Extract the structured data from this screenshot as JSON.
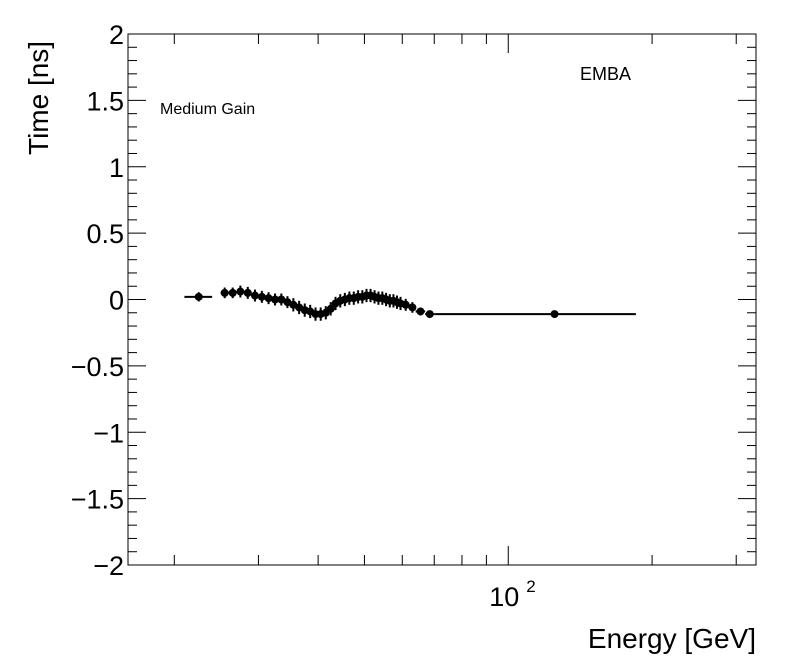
{
  "chart_data": {
    "type": "scatter",
    "title": "",
    "xlabel": "Energy [GeV]",
    "ylabel": "Time [ns]",
    "xscale": "log",
    "xlim": [
      16,
      330
    ],
    "ylim": [
      -2,
      2
    ],
    "grid": false,
    "annotations": [
      "Medium Gain",
      "EMBA"
    ],
    "y_ticks": [
      {
        "value": 2,
        "label": "2"
      },
      {
        "value": 1.5,
        "label": "1.5"
      },
      {
        "value": 1,
        "label": "1"
      },
      {
        "value": 0.5,
        "label": "0.5"
      },
      {
        "value": 0,
        "label": "0"
      },
      {
        "value": -0.5,
        "label": "−0.5"
      },
      {
        "value": -1,
        "label": "−1"
      },
      {
        "value": -1.5,
        "label": "−1.5"
      },
      {
        "value": -2,
        "label": "−2"
      }
    ],
    "x_major_ticks": [
      {
        "value": 100,
        "label_base": "10",
        "label_exp": "2"
      }
    ],
    "series": [
      {
        "name": "EMBA",
        "points": [
          {
            "x": 22.5,
            "y": 0.02,
            "xlo": 21.0,
            "xhi": 24.0,
            "yerr": 0.035
          },
          {
            "x": 25.5,
            "y": 0.05,
            "xlo": 25.0,
            "xhi": 26.0,
            "yerr": 0.04
          },
          {
            "x": 26.5,
            "y": 0.05,
            "xlo": 26.0,
            "xhi": 27.0,
            "yerr": 0.04
          },
          {
            "x": 27.5,
            "y": 0.06,
            "xlo": 27.0,
            "xhi": 28.0,
            "yerr": 0.045
          },
          {
            "x": 28.5,
            "y": 0.05,
            "xlo": 28.0,
            "xhi": 29.0,
            "yerr": 0.045
          },
          {
            "x": 29.5,
            "y": 0.03,
            "xlo": 29.0,
            "xhi": 30.0,
            "yerr": 0.045
          },
          {
            "x": 30.5,
            "y": 0.02,
            "xlo": 30.0,
            "xhi": 31.0,
            "yerr": 0.045
          },
          {
            "x": 31.5,
            "y": 0.01,
            "xlo": 31.0,
            "xhi": 32.0,
            "yerr": 0.045
          },
          {
            "x": 32.5,
            "y": 0.0,
            "xlo": 32.0,
            "xhi": 33.0,
            "yerr": 0.045
          },
          {
            "x": 33.5,
            "y": 0.0,
            "xlo": 33.0,
            "xhi": 34.0,
            "yerr": 0.045
          },
          {
            "x": 34.5,
            "y": -0.02,
            "xlo": 34.0,
            "xhi": 35.0,
            "yerr": 0.045
          },
          {
            "x": 35.5,
            "y": -0.04,
            "xlo": 35.0,
            "xhi": 36.0,
            "yerr": 0.05
          },
          {
            "x": 36.5,
            "y": -0.06,
            "xlo": 36.0,
            "xhi": 37.0,
            "yerr": 0.05
          },
          {
            "x": 37.5,
            "y": -0.08,
            "xlo": 37.0,
            "xhi": 38.0,
            "yerr": 0.05
          },
          {
            "x": 38.5,
            "y": -0.09,
            "xlo": 38.0,
            "xhi": 39.0,
            "yerr": 0.05
          },
          {
            "x": 39.5,
            "y": -0.11,
            "xlo": 39.0,
            "xhi": 40.0,
            "yerr": 0.05
          },
          {
            "x": 40.5,
            "y": -0.11,
            "xlo": 40.0,
            "xhi": 41.0,
            "yerr": 0.05
          },
          {
            "x": 41.5,
            "y": -0.1,
            "xlo": 41.0,
            "xhi": 42.0,
            "yerr": 0.05
          },
          {
            "x": 42.5,
            "y": -0.07,
            "xlo": 42.0,
            "xhi": 43.0,
            "yerr": 0.05
          },
          {
            "x": 43.5,
            "y": -0.03,
            "xlo": 43.0,
            "xhi": 44.0,
            "yerr": 0.05
          },
          {
            "x": 44.5,
            "y": -0.01,
            "xlo": 44.0,
            "xhi": 45.0,
            "yerr": 0.05
          },
          {
            "x": 45.5,
            "y": 0.0,
            "xlo": 45.0,
            "xhi": 46.0,
            "yerr": 0.05
          },
          {
            "x": 46.5,
            "y": 0.01,
            "xlo": 46.0,
            "xhi": 47.0,
            "yerr": 0.05
          },
          {
            "x": 47.5,
            "y": 0.01,
            "xlo": 47.0,
            "xhi": 48.0,
            "yerr": 0.05
          },
          {
            "x": 48.5,
            "y": 0.02,
            "xlo": 48.0,
            "xhi": 49.0,
            "yerr": 0.05
          },
          {
            "x": 49.5,
            "y": 0.02,
            "xlo": 49.0,
            "xhi": 50.0,
            "yerr": 0.05
          },
          {
            "x": 50.5,
            "y": 0.03,
            "xlo": 50.0,
            "xhi": 51.0,
            "yerr": 0.05
          },
          {
            "x": 51.5,
            "y": 0.03,
            "xlo": 51.0,
            "xhi": 52.0,
            "yerr": 0.05
          },
          {
            "x": 52.5,
            "y": 0.02,
            "xlo": 52.0,
            "xhi": 53.0,
            "yerr": 0.05
          },
          {
            "x": 53.5,
            "y": 0.01,
            "xlo": 53.0,
            "xhi": 54.0,
            "yerr": 0.05
          },
          {
            "x": 54.5,
            "y": 0.01,
            "xlo": 54.0,
            "xhi": 55.0,
            "yerr": 0.05
          },
          {
            "x": 55.5,
            "y": 0.0,
            "xlo": 55.0,
            "xhi": 56.0,
            "yerr": 0.05
          },
          {
            "x": 56.5,
            "y": -0.01,
            "xlo": 56.0,
            "xhi": 57.0,
            "yerr": 0.05
          },
          {
            "x": 57.5,
            "y": -0.01,
            "xlo": 57.0,
            "xhi": 58.0,
            "yerr": 0.05
          },
          {
            "x": 58.5,
            "y": -0.02,
            "xlo": 58.0,
            "xhi": 59.0,
            "yerr": 0.05
          },
          {
            "x": 59.5,
            "y": -0.03,
            "xlo": 59.0,
            "xhi": 60.0,
            "yerr": 0.05
          },
          {
            "x": 61.0,
            "y": -0.04,
            "xlo": 60.0,
            "xhi": 62.0,
            "yerr": 0.045
          },
          {
            "x": 63.0,
            "y": -0.06,
            "xlo": 62.0,
            "xhi": 64.0,
            "yerr": 0.04
          },
          {
            "x": 65.5,
            "y": -0.09,
            "xlo": 64.0,
            "xhi": 67.0,
            "yerr": 0.03
          },
          {
            "x": 68.5,
            "y": -0.11,
            "xlo": 67.0,
            "xhi": 70.0,
            "yerr": 0.02
          },
          {
            "x": 125.0,
            "y": -0.11,
            "xlo": 70.0,
            "xhi": 185.0,
            "yerr": 0.01
          }
        ]
      }
    ]
  }
}
